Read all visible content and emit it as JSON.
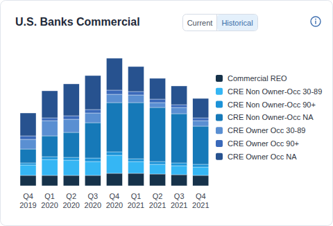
{
  "chart_data": {
    "type": "bar",
    "title": "U.S. Banks Commercial",
    "stacked": true,
    "grid": false,
    "legend": "right",
    "tick_labels": "x",
    "categories": [
      "Q4 2019",
      "Q1 2020",
      "Q2 2020",
      "Q3 2020",
      "Q4 2020",
      "Q1 2021",
      "Q2 2021",
      "Q3 2021",
      "Q4 2021"
    ],
    "ylim": [
      0,
      200
    ],
    "series": [
      {
        "name": "Commercial REO",
        "color": "#16324a",
        "values": [
          15,
          15,
          15,
          15,
          18,
          18,
          17,
          16,
          15
        ]
      },
      {
        "name": "CRE Non Owner-Occ 30-89",
        "color": "#35b6f4",
        "values": [
          15,
          23,
          22,
          20,
          26,
          17,
          14,
          13,
          12
        ]
      },
      {
        "name": "CRE Non Owner-Occ 90+",
        "color": "#1c93d8",
        "values": [
          3,
          4,
          4,
          5,
          5,
          4,
          4,
          4,
          4
        ]
      },
      {
        "name": "CRE Non Owner-Occ NA",
        "color": "#1679b8",
        "values": [
          20,
          30,
          36,
          51,
          71,
          81,
          78,
          71,
          55
        ]
      },
      {
        "name": "CRE Owner Occ 30-89",
        "color": "#5a8fd2",
        "values": [
          14,
          22,
          19,
          14,
          12,
          11,
          7,
          9,
          8
        ]
      },
      {
        "name": "CRE Owner Occ 90+",
        "color": "#3a69ba",
        "values": [
          5,
          4,
          5,
          5,
          6,
          5,
          5,
          4,
          4
        ]
      },
      {
        "name": "CRE Owner Occ NA",
        "color": "#27528f",
        "values": [
          33,
          39,
          46,
          49,
          46,
          36,
          30,
          27,
          28
        ]
      }
    ]
  },
  "controls": {
    "options": [
      "Current",
      "Historical"
    ],
    "active": "Historical"
  }
}
